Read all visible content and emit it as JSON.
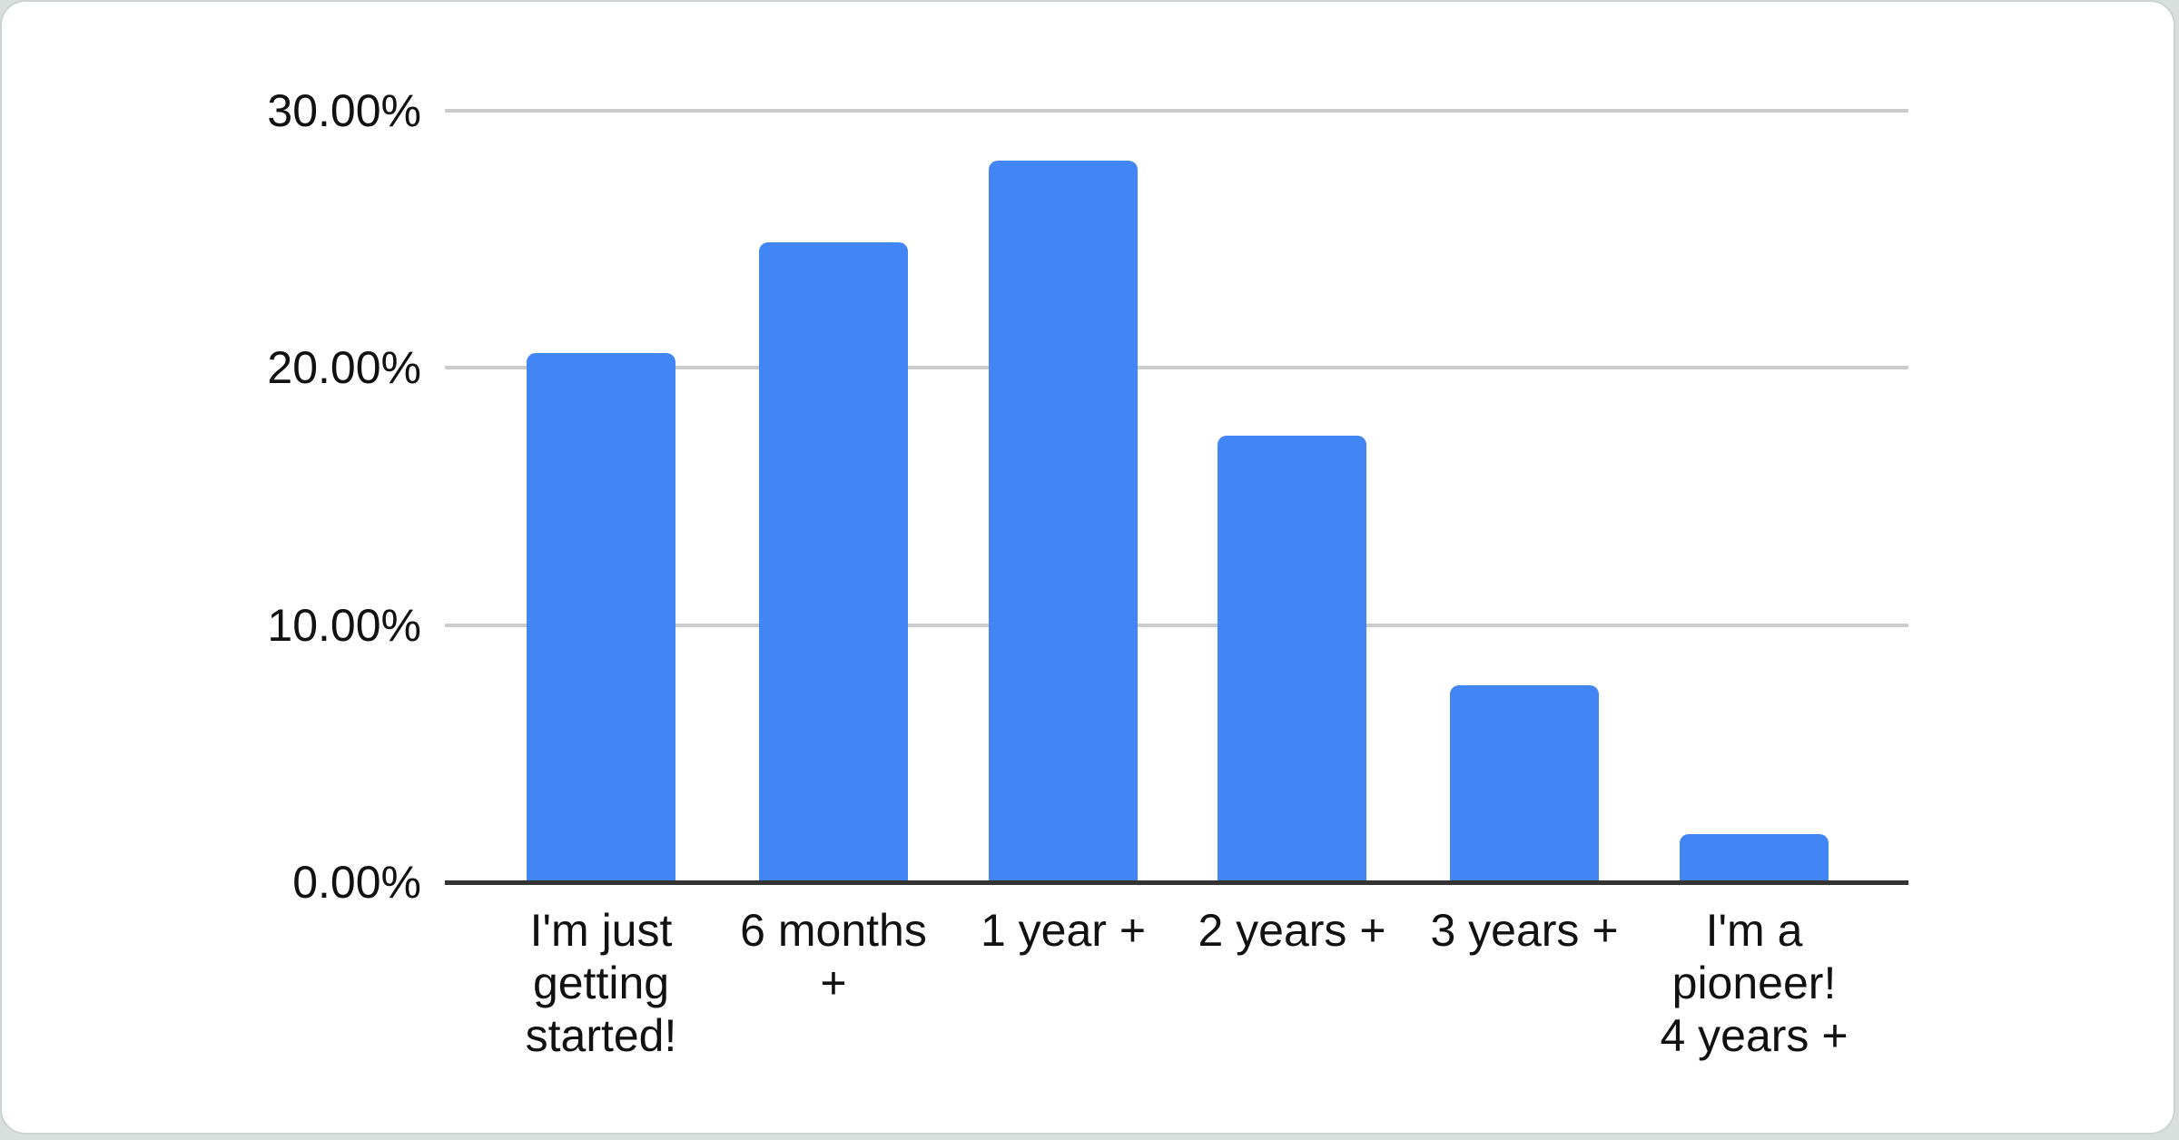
{
  "chart_data": {
    "type": "bar",
    "title": "",
    "categories": [
      "I'm just getting started!",
      "6 months +",
      "1 year +",
      "2 years +",
      "3 years +",
      "I'm a pioneer! 4 years +"
    ],
    "category_label_lines": [
      [
        "I'm just",
        "getting",
        "started!"
      ],
      [
        "6 months",
        "+"
      ],
      [
        "1 year +"
      ],
      [
        "2 years +"
      ],
      [
        "3 years +"
      ],
      [
        "I'm a",
        "pioneer!",
        "4 years +"
      ]
    ],
    "values": [
      20.5,
      24.8,
      28.0,
      17.3,
      7.6,
      1.8
    ],
    "value_unit": "%",
    "y_axis": {
      "tick_labels": [
        "30.00%",
        "20.00%",
        "10.00%",
        "0.00%"
      ],
      "tick_values": [
        30,
        20,
        10,
        0
      ],
      "range": [
        0,
        30
      ]
    },
    "xlabel": "",
    "ylabel": "",
    "legend": "none",
    "grid": true,
    "colors": {
      "bar": "#4285f4",
      "gridline": "#cccccc",
      "axis_line": "#333333",
      "label_text": "#111111",
      "card_background": "#ffffff",
      "card_border": "#ccd4d0",
      "page_background": "#d9dfdc"
    }
  }
}
